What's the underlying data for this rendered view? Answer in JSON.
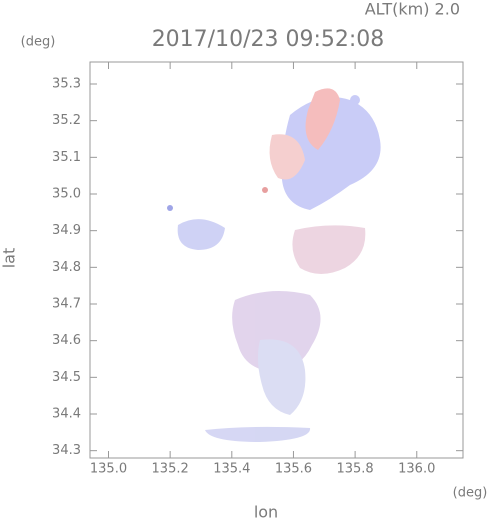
{
  "chart_data": {
    "type": "map",
    "title": "2017/10/23 09:52:08",
    "annotation": "ALT(km) 2.0",
    "x_label": "lon",
    "y_label": "lat",
    "x_unit": "(deg)",
    "y_unit": "(deg)",
    "xlim": [
      134.94,
      136.15
    ],
    "xticks": [
      {
        "value": 135,
        "label": "135.0"
      },
      135.2,
      135.4,
      135.6,
      135.8,
      {
        "value": 136,
        "label": "136.0"
      }
    ],
    "ylim": [
      34.28,
      35.36
    ],
    "yticks": [
      34.3,
      34.4,
      34.5,
      34.6,
      34.7,
      34.8,
      34.9,
      {
        "value": 35,
        "label": "35.0"
      },
      35.1,
      35.2,
      35.3
    ]
  }
}
